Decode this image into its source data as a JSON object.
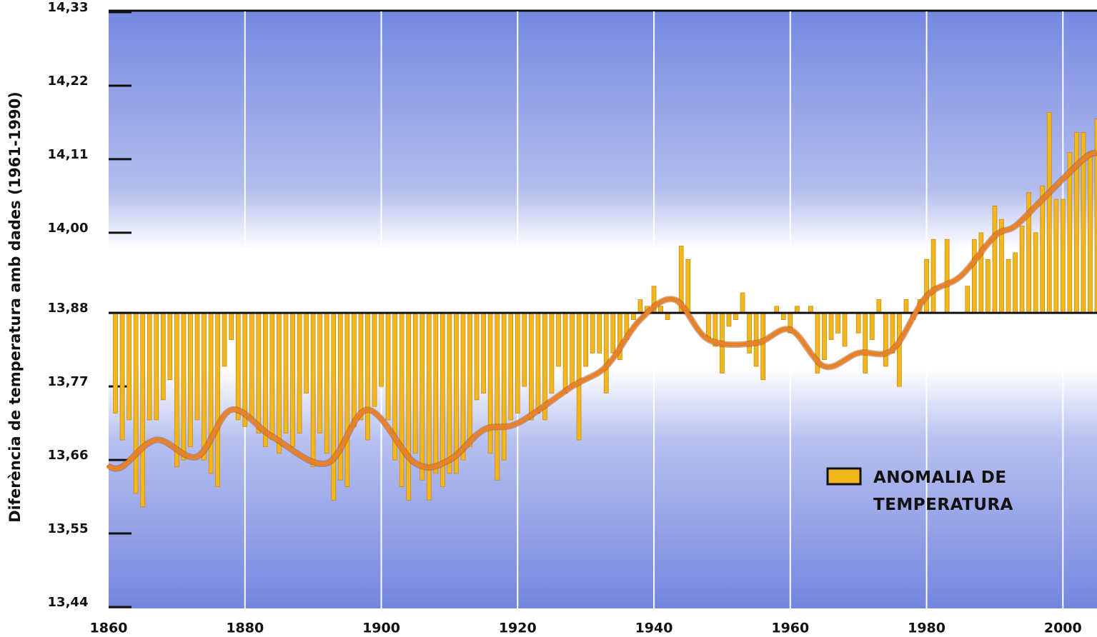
{
  "chart_data": {
    "type": "bar",
    "ylabel": "Diferència de temperatura amb dades (1961-1990)",
    "x": [
      1861,
      1862,
      1863,
      1864,
      1865,
      1866,
      1867,
      1868,
      1869,
      1870,
      1871,
      1872,
      1873,
      1874,
      1875,
      1876,
      1877,
      1878,
      1879,
      1880,
      1881,
      1882,
      1883,
      1884,
      1885,
      1886,
      1887,
      1888,
      1889,
      1890,
      1891,
      1892,
      1893,
      1894,
      1895,
      1896,
      1897,
      1898,
      1899,
      1900,
      1901,
      1902,
      1903,
      1904,
      1905,
      1906,
      1907,
      1908,
      1909,
      1910,
      1911,
      1912,
      1913,
      1914,
      1915,
      1916,
      1917,
      1918,
      1919,
      1920,
      1921,
      1922,
      1923,
      1924,
      1925,
      1926,
      1927,
      1928,
      1929,
      1930,
      1931,
      1932,
      1933,
      1934,
      1935,
      1936,
      1937,
      1938,
      1939,
      1940,
      1941,
      1942,
      1943,
      1944,
      1945,
      1946,
      1947,
      1948,
      1949,
      1950,
      1951,
      1952,
      1953,
      1954,
      1955,
      1956,
      1957,
      1958,
      1959,
      1960,
      1961,
      1962,
      1963,
      1964,
      1965,
      1966,
      1967,
      1968,
      1969,
      1970,
      1971,
      1972,
      1973,
      1974,
      1975,
      1976,
      1977,
      1978,
      1979,
      1980,
      1981,
      1982,
      1983,
      1984,
      1985,
      1986,
      1987,
      1988,
      1989,
      1990,
      1991,
      1992,
      1993,
      1994,
      1995,
      1996,
      1997,
      1998,
      1999,
      2000,
      2001,
      2002,
      2003,
      2004,
      2005
    ],
    "series": [
      {
        "name": "ANOMALIA DE TEMPERATURA",
        "color": "#f3b71e",
        "values": [
          13.73,
          13.69,
          13.72,
          13.61,
          13.59,
          13.72,
          13.72,
          13.75,
          13.78,
          13.65,
          13.66,
          13.68,
          13.72,
          13.66,
          13.64,
          13.62,
          13.8,
          13.84,
          13.72,
          13.71,
          13.72,
          13.7,
          13.68,
          13.69,
          13.67,
          13.7,
          13.68,
          13.7,
          13.76,
          13.65,
          13.7,
          13.67,
          13.6,
          13.63,
          13.62,
          13.71,
          13.72,
          13.69,
          13.74,
          13.77,
          13.72,
          13.66,
          13.62,
          13.6,
          13.67,
          13.63,
          13.6,
          13.64,
          13.62,
          13.64,
          13.64,
          13.66,
          13.68,
          13.75,
          13.76,
          13.67,
          13.63,
          13.66,
          13.72,
          13.73,
          13.77,
          13.72,
          13.73,
          13.72,
          13.76,
          13.8,
          13.76,
          13.77,
          13.69,
          13.8,
          13.82,
          13.82,
          13.76,
          13.82,
          13.81,
          13.84,
          13.87,
          13.9,
          13.89,
          13.92,
          13.89,
          13.87,
          13.88,
          13.98,
          13.96,
          13.88,
          13.88,
          13.84,
          13.83,
          13.79,
          13.86,
          13.87,
          13.91,
          13.82,
          13.8,
          13.78,
          13.88,
          13.89,
          13.87,
          13.85,
          13.89,
          13.88,
          13.89,
          13.79,
          13.81,
          13.84,
          13.85,
          13.83,
          13.88,
          13.85,
          13.79,
          13.84,
          13.9,
          13.8,
          13.82,
          13.77,
          13.9,
          13.87,
          13.9,
          13.96,
          13.99,
          13.88,
          13.99,
          13.88,
          13.88,
          13.92,
          13.99,
          14.0,
          13.96,
          14.04,
          14.02,
          13.96,
          13.97,
          14.01,
          14.06,
          14.0,
          14.07,
          14.18,
          14.05,
          14.05,
          14.12,
          14.15,
          14.15,
          14.12,
          14.17
        ]
      }
    ],
    "trend": {
      "color": "#e8822a",
      "x": [
        1860,
        1862,
        1867,
        1873,
        1878,
        1884,
        1892,
        1898,
        1905,
        1910,
        1915,
        1920,
        1928,
        1933,
        1938,
        1943,
        1948,
        1955,
        1960,
        1965,
        1970,
        1975,
        1980,
        1985,
        1990,
        1993,
        1997,
        2003,
        2005
      ],
      "values": [
        13.65,
        13.65,
        13.69,
        13.665,
        13.735,
        13.695,
        13.655,
        13.735,
        13.655,
        13.66,
        13.705,
        13.715,
        13.77,
        13.8,
        13.87,
        13.9,
        13.84,
        13.835,
        13.855,
        13.8,
        13.82,
        13.825,
        13.905,
        13.935,
        13.995,
        14.01,
        14.05,
        14.11,
        14.12
      ]
    },
    "baseline": 13.88,
    "xlim": [
      1860,
      2005
    ],
    "xticks": [
      1860,
      1880,
      1900,
      1920,
      1940,
      1960,
      1980,
      2000
    ],
    "ylim": [
      13.44,
      14.33
    ],
    "yticks": [
      {
        "value": 13.44,
        "label": "13,44"
      },
      {
        "value": 13.55,
        "label": "13,55"
      },
      {
        "value": 13.66,
        "label": "13,66"
      },
      {
        "value": 13.77,
        "label": "13,77"
      },
      {
        "value": 13.88,
        "label": "13,88"
      },
      {
        "value": 14.0,
        "label": "14,00"
      },
      {
        "value": 14.11,
        "label": "14,11"
      },
      {
        "value": 14.22,
        "label": "14,22"
      },
      {
        "value": 14.33,
        "label": "14,33"
      }
    ],
    "grid": true
  }
}
